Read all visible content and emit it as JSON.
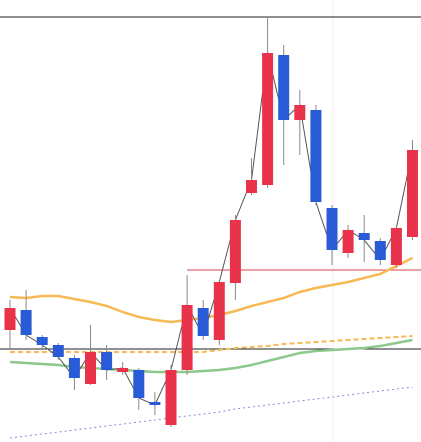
{
  "chart_data": {
    "type": "candlestick",
    "ylim": [
      0,
      442
    ],
    "up_color": "#e8334a",
    "down_color": "#2a5bd7",
    "wick_color": "#888888",
    "close_line_color": "#555555",
    "open": [
      112,
      132,
      105,
      97,
      84,
      58,
      90,
      70,
      72,
      40,
      17,
      72,
      134,
      102,
      159,
      249,
      257,
      387,
      322,
      332,
      234,
      189,
      209,
      201,
      177,
      205
    ],
    "high": [
      142,
      152,
      107,
      99,
      87,
      117,
      97,
      80,
      74,
      50,
      77,
      167,
      142,
      162,
      227,
      284,
      424,
      397,
      352,
      337,
      237,
      217,
      227,
      204,
      217,
      302
    ],
    "low": [
      92,
      102,
      94,
      82,
      52,
      57,
      62,
      67,
      32,
      27,
      15,
      67,
      102,
      97,
      142,
      247,
      254,
      277,
      287,
      237,
      177,
      184,
      180,
      177,
      174,
      202
    ],
    "close": [
      134,
      107,
      97,
      85,
      64,
      90,
      72,
      74,
      44,
      37,
      72,
      137,
      106,
      160,
      222,
      262,
      389,
      322,
      337,
      240,
      192,
      212,
      202,
      182,
      214,
      292
    ],
    "series": [
      {
        "color": "#f7b955",
        "style": "solid",
        "width": 2.5,
        "values": [
          145,
          144,
          146,
          146,
          143,
          140,
          136,
          130,
          125,
          122,
          120,
          122,
          124,
          127,
          131,
          136,
          140,
          144,
          150,
          154,
          157,
          160,
          164,
          168,
          176,
          184
        ]
      },
      {
        "color": "#f7b955",
        "style": "dashed",
        "width": 2,
        "values": [
          90,
          90,
          90,
          90,
          90,
          90,
          90,
          90,
          90,
          90,
          90,
          90,
          90,
          92,
          94,
          95,
          96,
          98,
          99,
          100,
          101,
          102,
          103,
          104,
          105,
          106
        ]
      },
      {
        "color": "#8cc98a",
        "style": "solid",
        "width": 2.5,
        "values": [
          80,
          79,
          78,
          77,
          75,
          74,
          73,
          72,
          71,
          70,
          70,
          70,
          71,
          72,
          74,
          77,
          81,
          85,
          89,
          91,
          92,
          93,
          94,
          96,
          99,
          102
        ]
      },
      {
        "color": "#8f86e0",
        "style": "dotted",
        "width": 1,
        "values": [
          4,
          6,
          8,
          10,
          12,
          14,
          16,
          18,
          20,
          22,
          24,
          26,
          28,
          30,
          33,
          35,
          37,
          39,
          41,
          43,
          45,
          47,
          49,
          51,
          53,
          55
        ]
      }
    ],
    "levels": [
      {
        "value": 425,
        "color": "#222222",
        "start": 0
      },
      {
        "value": 93,
        "color": "#222222",
        "start": 0
      },
      {
        "value": 172,
        "color": "#d9434e",
        "start": 11
      }
    ]
  }
}
